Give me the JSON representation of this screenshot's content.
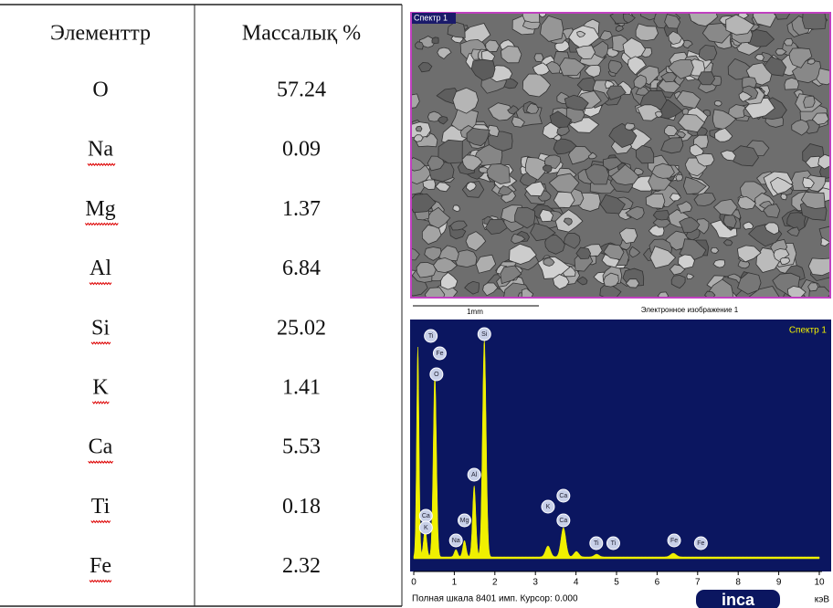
{
  "table": {
    "header": [
      "Элементтр",
      "Массалық %"
    ],
    "rows": [
      [
        "O",
        "57.24"
      ],
      [
        "Na",
        "0.09"
      ],
      [
        "Mg",
        "1.37"
      ],
      [
        "Al",
        "6.84"
      ],
      [
        "Si",
        "25.02"
      ],
      [
        "K",
        "1.41"
      ],
      [
        "Ca",
        "5.53"
      ],
      [
        "Ti",
        "0.18"
      ],
      [
        "Fe",
        "2.32"
      ]
    ]
  },
  "image": {
    "label": "Спектр 1",
    "scale": "1mm",
    "caption": "Электронное изображение 1"
  },
  "spectrum": {
    "label": "Спектр 1",
    "axis_ticks": [
      "0",
      "1",
      "2",
      "3",
      "4",
      "5",
      "6",
      "7",
      "8",
      "9",
      "10"
    ],
    "footer": "Полная шкала 8401 имп. Курсор: 0.000",
    "unit": "кэВ",
    "logo": "inca",
    "peak_labels": [
      "Ti",
      "Fe",
      "O",
      "Si",
      "Al",
      "Mg",
      "Na",
      "Ca",
      "K",
      "K",
      "Ca",
      "Ca",
      "Ti",
      "Ti",
      "Fe",
      "Fe"
    ]
  }
}
